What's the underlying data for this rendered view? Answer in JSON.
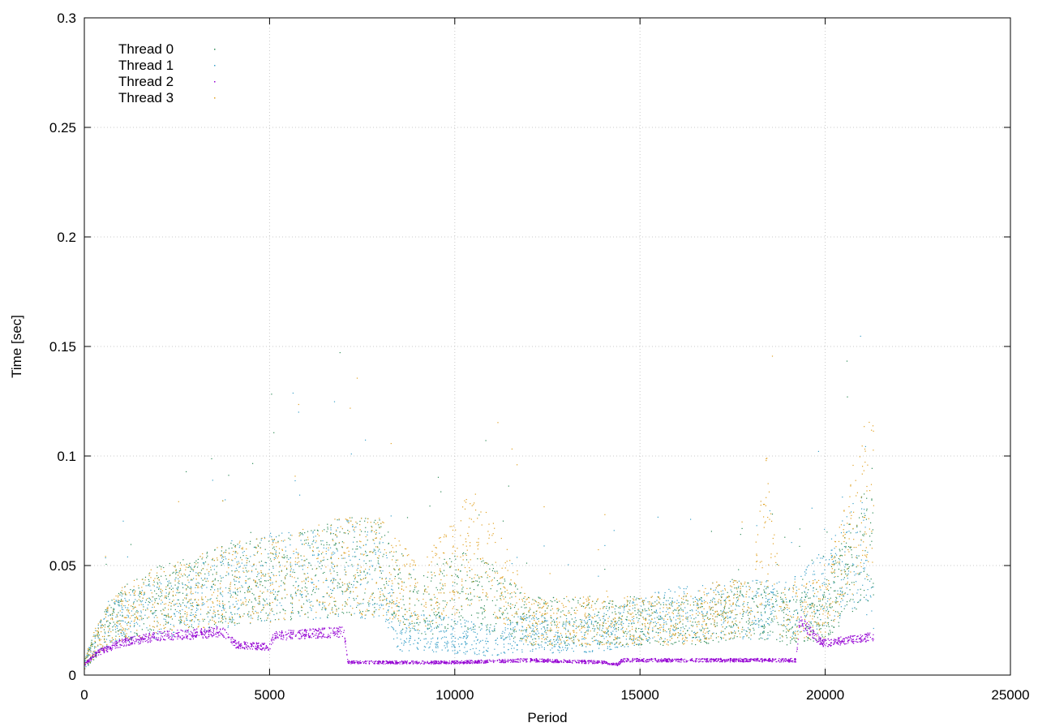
{
  "chart_data": {
    "type": "scatter",
    "title": "",
    "xlabel": "Period",
    "ylabel": "Time [sec]",
    "xlim": [
      0,
      25000
    ],
    "ylim": [
      0,
      0.3
    ],
    "x_ticks": [
      0,
      5000,
      10000,
      15000,
      20000,
      25000
    ],
    "x_tick_labels": [
      "0",
      "5000",
      "10000",
      "15000",
      "20000",
      "25000"
    ],
    "y_ticks": [
      0,
      0.05,
      0.1,
      0.15,
      0.2,
      0.25,
      0.3
    ],
    "y_tick_labels": [
      "0",
      "0.05",
      "0.1",
      "0.15",
      "0.2",
      "0.25",
      "0.3"
    ],
    "grid": true,
    "legend_position": "top-left",
    "x_max_data": 21300,
    "series": [
      {
        "name": "Thread 0",
        "color": "#2e8b57",
        "trend": [
          [
            0,
            0.005
          ],
          [
            200,
            0.012
          ],
          [
            500,
            0.02
          ],
          [
            1000,
            0.028
          ],
          [
            2000,
            0.035
          ],
          [
            3000,
            0.038
          ],
          [
            4000,
            0.042
          ],
          [
            5000,
            0.044
          ],
          [
            6000,
            0.046
          ],
          [
            7000,
            0.05
          ],
          [
            8000,
            0.05
          ],
          [
            9000,
            0.03
          ],
          [
            10000,
            0.04
          ],
          [
            11000,
            0.035
          ],
          [
            12000,
            0.025
          ],
          [
            13000,
            0.025
          ],
          [
            14000,
            0.025
          ],
          [
            15000,
            0.025
          ],
          [
            16000,
            0.025
          ],
          [
            17000,
            0.025
          ],
          [
            18000,
            0.03
          ],
          [
            19000,
            0.025
          ],
          [
            20000,
            0.03
          ],
          [
            21000,
            0.06
          ],
          [
            21300,
            0.06
          ]
        ]
      },
      {
        "name": "Thread 1",
        "color": "#3aa0c8",
        "trend": [
          [
            0,
            0.005
          ],
          [
            200,
            0.012
          ],
          [
            500,
            0.02
          ],
          [
            1000,
            0.026
          ],
          [
            2000,
            0.03
          ],
          [
            3000,
            0.035
          ],
          [
            4000,
            0.04
          ],
          [
            5000,
            0.045
          ],
          [
            6000,
            0.045
          ],
          [
            7000,
            0.05
          ],
          [
            8000,
            0.045
          ],
          [
            8500,
            0.02
          ],
          [
            9000,
            0.02
          ],
          [
            10000,
            0.018
          ],
          [
            11000,
            0.016
          ],
          [
            12000,
            0.02
          ],
          [
            13000,
            0.018
          ],
          [
            14000,
            0.02
          ],
          [
            15000,
            0.025
          ],
          [
            16000,
            0.028
          ],
          [
            17000,
            0.03
          ],
          [
            18000,
            0.03
          ],
          [
            19000,
            0.03
          ],
          [
            20000,
            0.04
          ],
          [
            21000,
            0.06
          ],
          [
            21300,
            0.03
          ]
        ]
      },
      {
        "name": "Thread 2",
        "color": "#9400d3",
        "trend": [
          [
            0,
            0.005
          ],
          [
            300,
            0.01
          ],
          [
            1000,
            0.015
          ],
          [
            2000,
            0.018
          ],
          [
            3000,
            0.019
          ],
          [
            3700,
            0.02
          ],
          [
            4100,
            0.014
          ],
          [
            5000,
            0.013
          ],
          [
            5100,
            0.018
          ],
          [
            6000,
            0.019
          ],
          [
            7000,
            0.02
          ],
          [
            7100,
            0.006
          ],
          [
            8000,
            0.006
          ],
          [
            10000,
            0.006
          ],
          [
            12000,
            0.007
          ],
          [
            14000,
            0.006
          ],
          [
            14400,
            0.005
          ],
          [
            14500,
            0.007
          ],
          [
            16000,
            0.007
          ],
          [
            18000,
            0.007
          ],
          [
            19200,
            0.007
          ],
          [
            19300,
            0.025
          ],
          [
            19900,
            0.015
          ],
          [
            20100,
            0.015
          ],
          [
            20500,
            0.016
          ],
          [
            21300,
            0.018
          ]
        ]
      },
      {
        "name": "Thread 3",
        "color": "#e0a020",
        "trend": [
          [
            0,
            0.005
          ],
          [
            200,
            0.013
          ],
          [
            500,
            0.02
          ],
          [
            1000,
            0.028
          ],
          [
            2000,
            0.035
          ],
          [
            3000,
            0.038
          ],
          [
            4000,
            0.042
          ],
          [
            5000,
            0.044
          ],
          [
            6000,
            0.047
          ],
          [
            7000,
            0.05
          ],
          [
            8000,
            0.05
          ],
          [
            9000,
            0.035
          ],
          [
            10000,
            0.05
          ],
          [
            10500,
            0.06
          ],
          [
            11000,
            0.05
          ],
          [
            12000,
            0.025
          ],
          [
            13000,
            0.025
          ],
          [
            14000,
            0.025
          ],
          [
            15000,
            0.025
          ],
          [
            16000,
            0.025
          ],
          [
            17000,
            0.03
          ],
          [
            18000,
            0.03
          ],
          [
            18400,
            0.07
          ],
          [
            18800,
            0.03
          ],
          [
            19000,
            0.03
          ],
          [
            20000,
            0.03
          ],
          [
            21000,
            0.08
          ],
          [
            21300,
            0.08
          ]
        ]
      }
    ]
  }
}
